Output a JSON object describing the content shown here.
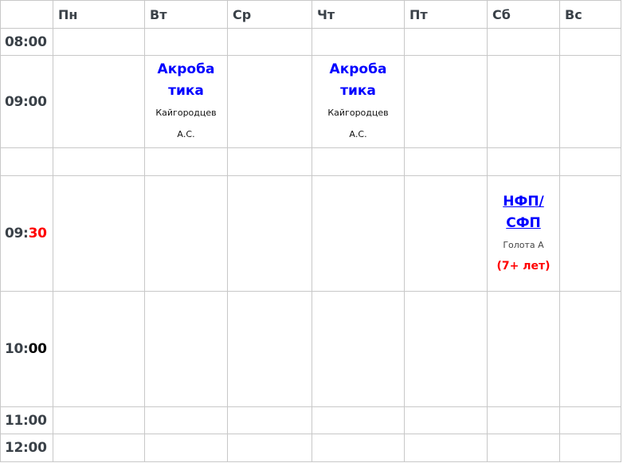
{
  "days": [
    "Пн",
    "Вт",
    "Ср",
    "Чт",
    "Пт",
    "Сб",
    "Вс"
  ],
  "times": [
    {
      "prefix": "08:00",
      "suffix": ""
    },
    {
      "prefix": "09:00",
      "suffix": ""
    },
    {
      "prefix": "",
      "suffix": ""
    },
    {
      "prefix": "09:",
      "suffix": "30"
    },
    {
      "prefix": "10:",
      "suffix": "00"
    },
    {
      "prefix": "11:00",
      "suffix": ""
    },
    {
      "prefix": "12:00",
      "suffix": ""
    }
  ],
  "classes": {
    "tue_0900": {
      "title_1": "Акроба",
      "title_2": "тика",
      "teacher_1": "Кайгородцев",
      "teacher_2": "А.С."
    },
    "thu_0900": {
      "title_1": "Акроба",
      "title_2": "тика",
      "teacher_1": "Кайгородцев",
      "teacher_2": "А.С."
    },
    "sat_0930": {
      "title_1": "НФП/",
      "title_2": "СФП",
      "teacher": "Голота А",
      "age": "(7+ лет)"
    }
  },
  "colors": {
    "class_title": "#0000ff",
    "highlight": "#ff0000",
    "grid": "#c8c8c8"
  }
}
